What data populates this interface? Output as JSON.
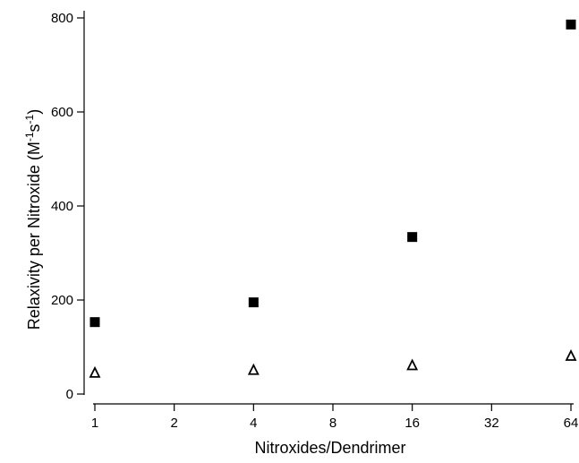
{
  "chart_data": {
    "type": "scatter",
    "title": "",
    "xlabel": "Nitroxides/Dendrimer",
    "ylabel_parts": [
      "Relaxivity per Nitroxide (M",
      "-1",
      "s",
      "-1",
      ")"
    ],
    "x_scale": "log2",
    "xlim": [
      0.95,
      67
    ],
    "ylim": [
      0,
      800
    ],
    "x_ticks": [
      1,
      2,
      4,
      8,
      16,
      32,
      64
    ],
    "y_ticks": [
      0,
      200,
      400,
      600,
      800
    ],
    "grid": false,
    "legend": "none",
    "series": [
      {
        "marker": "filled-square",
        "color": "#000000",
        "points": [
          {
            "x": 1,
            "y": 153
          },
          {
            "x": 4,
            "y": 195
          },
          {
            "x": 16,
            "y": 334
          },
          {
            "x": 64,
            "y": 786
          }
        ]
      },
      {
        "marker": "open-triangle",
        "color": "#000000",
        "points": [
          {
            "x": 1,
            "y": 45
          },
          {
            "x": 4,
            "y": 51
          },
          {
            "x": 16,
            "y": 61
          },
          {
            "x": 64,
            "y": 81
          }
        ]
      }
    ]
  }
}
